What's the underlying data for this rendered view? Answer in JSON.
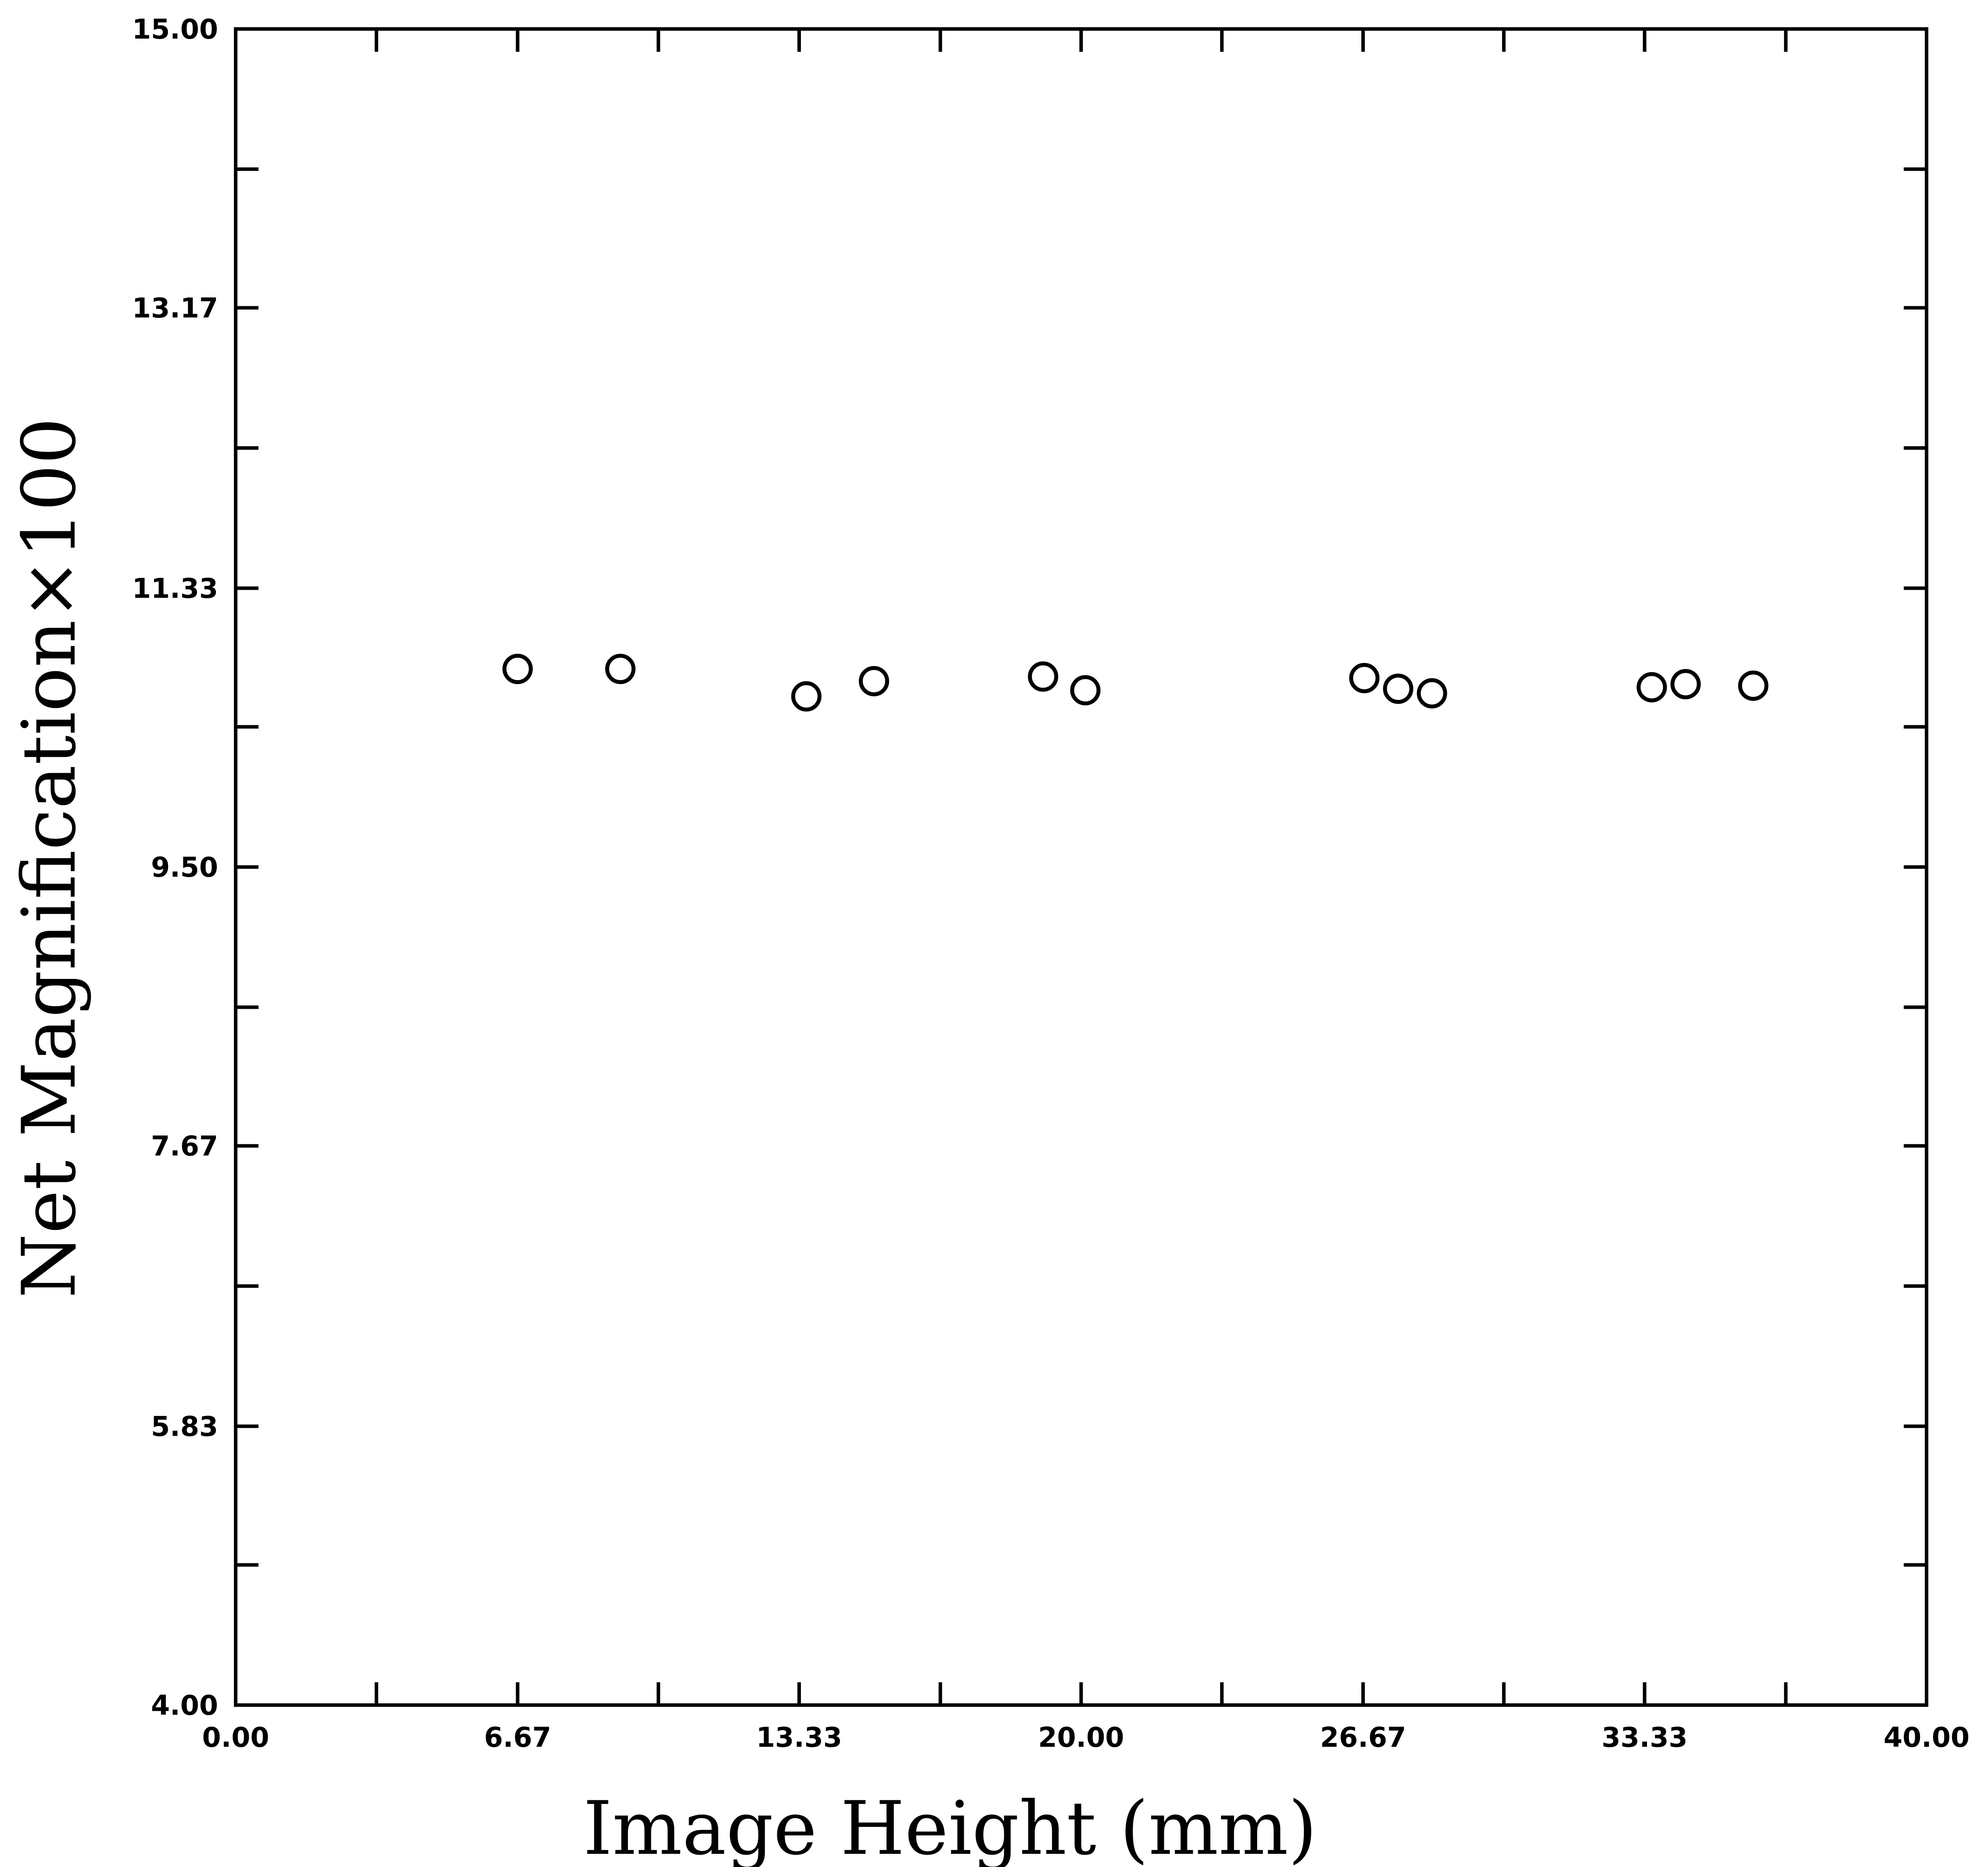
{
  "chart_data": {
    "type": "scatter",
    "xlabel": "Image Height (mm)",
    "ylabel": "Net Magnification×100",
    "xlim": [
      0,
      40
    ],
    "ylim": [
      4,
      15
    ],
    "x_ticks": [
      0,
      6.67,
      13.33,
      20,
      26.67,
      33.33,
      40
    ],
    "x_tick_labels": [
      "0.00",
      "6.67",
      "13.33",
      "20.00",
      "26.67",
      "33.33",
      "40.00"
    ],
    "x_minor_ticks": [
      3.33,
      10,
      16.67,
      23.33,
      30,
      36.67
    ],
    "y_ticks": [
      4,
      5.83,
      7.67,
      9.5,
      11.33,
      13.17,
      15
    ],
    "y_tick_labels": [
      "4.00",
      "5.83",
      "7.67",
      "9.50",
      "11.33",
      "13.17",
      "15.00"
    ],
    "y_minor_ticks": [
      4.92,
      6.75,
      8.58,
      10.42,
      12.25,
      14.08
    ],
    "marker": "open-circle",
    "grid": false,
    "series": [
      {
        "x": [
          6.67,
          9.1,
          13.5,
          15.1,
          19.1,
          20.1,
          26.7,
          27.5,
          28.3,
          33.5,
          34.3,
          35.9
        ],
        "y": [
          10.8,
          10.8,
          10.62,
          10.72,
          10.75,
          10.66,
          10.74,
          10.67,
          10.64,
          10.68,
          10.7,
          10.69
        ]
      }
    ]
  }
}
